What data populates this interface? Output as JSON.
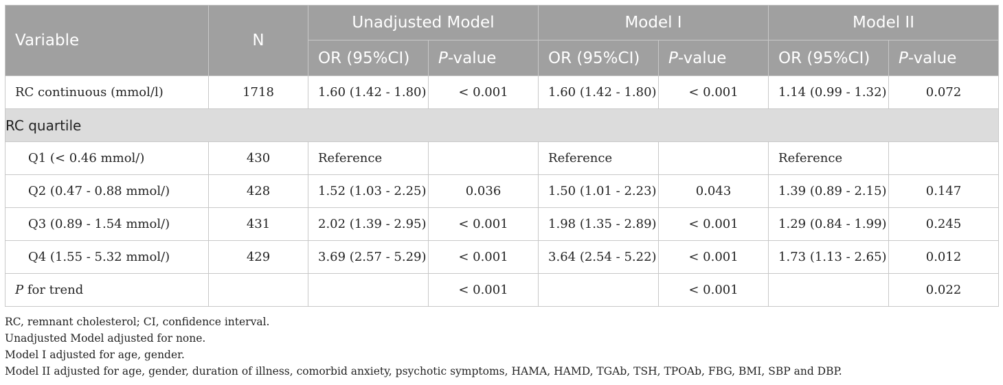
{
  "header": {
    "variable": "Variable",
    "n": "N",
    "groups": [
      "Unadjusted Model",
      "Model I",
      "Model II"
    ],
    "or_label": "OR (95%CI)",
    "p_italic": "P",
    "p_suffix": "-value"
  },
  "rows": {
    "rc_continuous": {
      "label": "RC continuous (mmol/l)",
      "n": "1718",
      "or1": "1.60 (1.42 - 1.80)",
      "p1": "< 0.001",
      "or2": "1.60 (1.42 - 1.80)",
      "p2": "< 0.001",
      "or3": "1.14 (0.99 - 1.32)",
      "p3": "0.072"
    },
    "section": "RC quartile",
    "q1": {
      "label": "Q1 (< 0.46 mmol/)",
      "n": "430",
      "or1": "Reference",
      "p1": "",
      "or2": "Reference",
      "p2": "",
      "or3": "Reference",
      "p3": ""
    },
    "q2": {
      "label": "Q2 (0.47 - 0.88 mmol/)",
      "n": "428",
      "or1": "1.52 (1.03 - 2.25)",
      "p1": "0.036",
      "or2": "1.50 (1.01 - 2.23)",
      "p2": "0.043",
      "or3": "1.39 (0.89 - 2.15)",
      "p3": "0.147"
    },
    "q3": {
      "label": "Q3 (0.89 - 1.54 mmol/)",
      "n": "431",
      "or1": "2.02 (1.39 - 2.95)",
      "p1": "< 0.001",
      "or2": "1.98 (1.35 - 2.89)",
      "p2": "< 0.001",
      "or3": "1.29 (0.84 - 1.99)",
      "p3": "0.245"
    },
    "q4": {
      "label": "Q4 (1.55 - 5.32 mmol/)",
      "n": "429",
      "or1": "3.69 (2.57 - 5.29)",
      "p1": "< 0.001",
      "or2": "3.64 (2.54 - 5.22)",
      "p2": "< 0.001",
      "or3": "1.73 (1.13 - 2.65)",
      "p3": "0.012"
    },
    "trend": {
      "label_italic": "P",
      "label_rest": " for trend",
      "n": "",
      "or1": "",
      "p1": "< 0.001",
      "or2": "",
      "p2": "< 0.001",
      "or3": "",
      "p3": "0.022"
    }
  },
  "notes": [
    "RC, remnant cholesterol; CI, confidence interval.",
    "Unadjusted Model adjusted for none.",
    "Model I adjusted for age, gender.",
    "Model II adjusted for age, gender, duration of illness, comorbid anxiety, psychotic symptoms, HAMA, HAMD, TGAb, TSH, TPOAb, FBG, BMI, SBP and DBP."
  ]
}
